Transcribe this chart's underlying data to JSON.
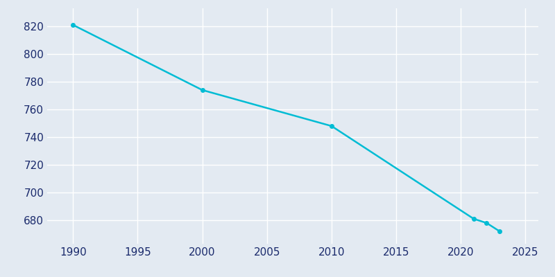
{
  "years": [
    1990,
    2000,
    2010,
    2021,
    2022,
    2023
  ],
  "population": [
    821,
    774,
    748,
    681,
    678,
    672
  ],
  "line_color": "#00BCD4",
  "marker": "o",
  "marker_size": 4,
  "line_width": 1.8,
  "bg_color": "#E3EAF2",
  "grid_color": "#ffffff",
  "xlim": [
    1988,
    2026
  ],
  "ylim": [
    663,
    833
  ],
  "xticks": [
    1990,
    1995,
    2000,
    2005,
    2010,
    2015,
    2020,
    2025
  ],
  "yticks": [
    680,
    700,
    720,
    740,
    760,
    780,
    800,
    820
  ],
  "tick_color": "#1a2a6c",
  "tick_fontsize": 11
}
